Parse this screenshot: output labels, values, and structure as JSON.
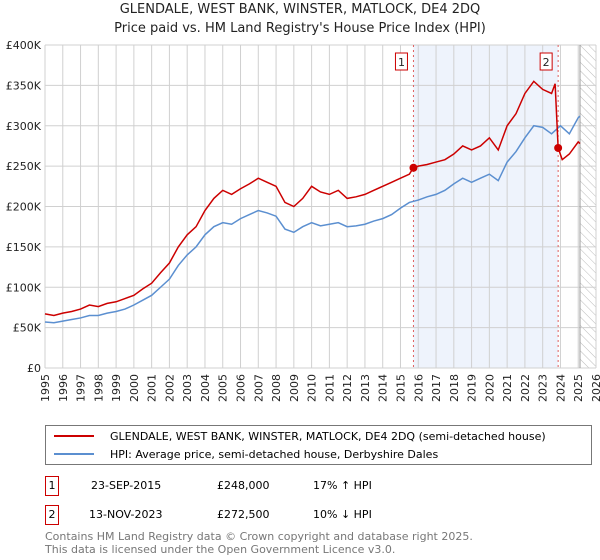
{
  "chart_data": {
    "type": "line",
    "title": "GLENDALE, WEST BANK, WINSTER, MATLOCK, DE4 2DQ",
    "subtitle": "Price paid vs. HM Land Registry's House Price Index (HPI)",
    "xlim": [
      1995,
      2026
    ],
    "ylim": [
      0,
      400000
    ],
    "yticks": [
      {
        "v": 0,
        "label": "£0"
      },
      {
        "v": 50000,
        "label": "£50K"
      },
      {
        "v": 100000,
        "label": "£100K"
      },
      {
        "v": 150000,
        "label": "£150K"
      },
      {
        "v": 200000,
        "label": "£200K"
      },
      {
        "v": 250000,
        "label": "£250K"
      },
      {
        "v": 300000,
        "label": "£300K"
      },
      {
        "v": 350000,
        "label": "£350K"
      },
      {
        "v": 400000,
        "label": "£400K"
      }
    ],
    "xticks": [
      "1995",
      "1996",
      "1997",
      "1998",
      "1999",
      "2000",
      "2001",
      "2002",
      "2003",
      "2004",
      "2005",
      "2006",
      "2007",
      "2008",
      "2009",
      "2010",
      "2011",
      "2012",
      "2013",
      "2014",
      "2015",
      "2016",
      "2017",
      "2018",
      "2019",
      "2020",
      "2021",
      "2022",
      "2023",
      "2024",
      "2025",
      "2026"
    ],
    "series": [
      {
        "name": "GLENDALE, WEST BANK, WINSTER, MATLOCK, DE4 2DQ (semi-detached house)",
        "color": "#cc0000",
        "x": [
          1995,
          1995.5,
          1996,
          1996.5,
          1997,
          1997.5,
          1998,
          1998.5,
          1999,
          1999.5,
          2000,
          2000.5,
          2001,
          2001.5,
          2002,
          2002.5,
          2003,
          2003.5,
          2004,
          2004.5,
          2005,
          2005.5,
          2006,
          2006.5,
          2007,
          2007.5,
          2008,
          2008.5,
          2009,
          2009.5,
          2010,
          2010.5,
          2011,
          2011.5,
          2012,
          2012.5,
          2013,
          2013.5,
          2014,
          2014.5,
          2015,
          2015.5,
          2015.73,
          2016,
          2016.5,
          2017,
          2017.5,
          2018,
          2018.5,
          2019,
          2019.5,
          2020,
          2020.5,
          2021,
          2021.5,
          2022,
          2022.5,
          2023,
          2023.5,
          2023.7,
          2023.87,
          2024.1,
          2024.5,
          2025,
          2025.1
        ],
        "y": [
          67000,
          65000,
          68000,
          70000,
          73000,
          78000,
          76000,
          80000,
          82000,
          86000,
          90000,
          98000,
          105000,
          118000,
          130000,
          150000,
          165000,
          175000,
          195000,
          210000,
          220000,
          215000,
          222000,
          228000,
          235000,
          230000,
          225000,
          205000,
          200000,
          210000,
          225000,
          218000,
          215000,
          220000,
          210000,
          212000,
          215000,
          220000,
          225000,
          230000,
          235000,
          240000,
          248000,
          250000,
          252000,
          255000,
          258000,
          265000,
          275000,
          270000,
          275000,
          285000,
          270000,
          300000,
          315000,
          340000,
          355000,
          345000,
          340000,
          352000,
          272500,
          258000,
          265000,
          280000,
          278000
        ]
      },
      {
        "name": "HPI: Average price, semi-detached house, Derbyshire Dales",
        "color": "#5b8fd0",
        "x": [
          1995,
          1995.5,
          1996,
          1996.5,
          1997,
          1997.5,
          1998,
          1998.5,
          1999,
          1999.5,
          2000,
          2000.5,
          2001,
          2001.5,
          2002,
          2002.5,
          2003,
          2003.5,
          2004,
          2004.5,
          2005,
          2005.5,
          2006,
          2006.5,
          2007,
          2007.5,
          2008,
          2008.5,
          2009,
          2009.5,
          2010,
          2010.5,
          2011,
          2011.5,
          2012,
          2012.5,
          2013,
          2013.5,
          2014,
          2014.5,
          2015,
          2015.5,
          2016,
          2016.5,
          2017,
          2017.5,
          2018,
          2018.5,
          2019,
          2019.5,
          2020,
          2020.5,
          2021,
          2021.5,
          2022,
          2022.5,
          2023,
          2023.5,
          2024,
          2024.5,
          2025,
          2025.1
        ],
        "y": [
          57000,
          56000,
          58000,
          60000,
          62000,
          65000,
          65000,
          68000,
          70000,
          73000,
          78000,
          84000,
          90000,
          100000,
          110000,
          127000,
          140000,
          150000,
          165000,
          175000,
          180000,
          178000,
          185000,
          190000,
          195000,
          192000,
          188000,
          172000,
          168000,
          175000,
          180000,
          176000,
          178000,
          180000,
          175000,
          176000,
          178000,
          182000,
          185000,
          190000,
          198000,
          205000,
          208000,
          212000,
          215000,
          220000,
          228000,
          235000,
          230000,
          235000,
          240000,
          232000,
          255000,
          268000,
          285000,
          300000,
          298000,
          290000,
          300000,
          290000,
          310000,
          312000
        ]
      }
    ],
    "sales_shading_from": 2015.73,
    "sales_shading_to": 2023.87,
    "future_hatch_from": 2025.1,
    "annotations": [
      {
        "label": "1",
        "x": 2015.73,
        "y": 248000
      },
      {
        "label": "2",
        "x": 2023.87,
        "y": 272500
      }
    ]
  },
  "legend": {
    "items": [
      "GLENDALE, WEST BANK, WINSTER, MATLOCK, DE4 2DQ (semi-detached house)",
      "HPI: Average price, semi-detached house, Derbyshire Dales"
    ]
  },
  "transactions": [
    {
      "num": "1",
      "date": "23-SEP-2015",
      "price": "£248,000",
      "hpi": "17% ↑ HPI"
    },
    {
      "num": "2",
      "date": "13-NOV-2023",
      "price": "£272,500",
      "hpi": "10% ↓ HPI"
    }
  ],
  "footer": {
    "line1": "Contains HM Land Registry data © Crown copyright and database right 2025.",
    "line2": "This data is licensed under the Open Government Licence v3.0."
  }
}
